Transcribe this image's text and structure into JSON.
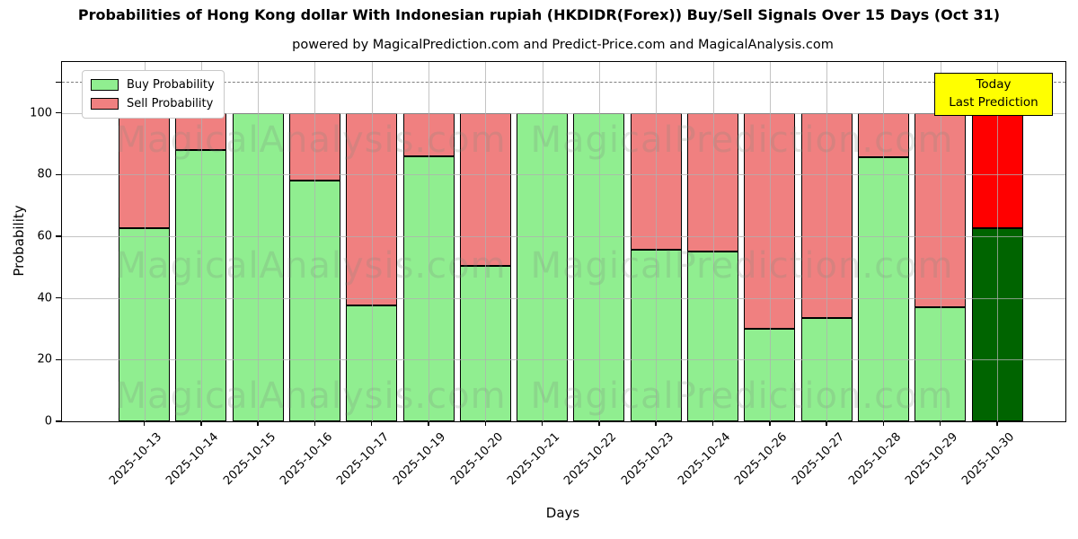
{
  "title": "Probabilities of Hong Kong dollar With Indonesian rupiah (HKDIDR(Forex)) Buy/Sell Signals Over 15 Days (Oct 31)",
  "subtitle": "powered by MagicalPrediction.com and Predict-Price.com and MagicalAnalysis.com",
  "legend": [
    {
      "label": "Buy Probability",
      "color": "#90ee90"
    },
    {
      "label": "Sell Probability",
      "color": "#f08080"
    }
  ],
  "annotation": {
    "line1": "Today",
    "line2": "Last Prediction",
    "bg_color": "#ffff00"
  },
  "watermark": {
    "left_text": "MagicalAnalysis.com",
    "right_text": "MagicalPrediction.com"
  },
  "chart_data": {
    "type": "bar",
    "stacked": true,
    "title": "Probabilities of Hong Kong dollar With Indonesian rupiah (HKDIDR(Forex)) Buy/Sell Signals Over 15 Days (Oct 31)",
    "xlabel": "Days",
    "ylabel": "Probability",
    "ylim": [
      0,
      116.5
    ],
    "yticks": [
      0,
      20,
      40,
      60,
      80,
      100
    ],
    "dashed_line_y": 110,
    "grid": true,
    "legend_position": "upper left",
    "categories": [
      "2025-10-13",
      "2025-10-14",
      "2025-10-15",
      "2025-10-16",
      "2025-10-17",
      "2025-10-19",
      "2025-10-20",
      "2025-10-21",
      "2025-10-22",
      "2025-10-23",
      "2025-10-24",
      "2025-10-26",
      "2025-10-27",
      "2025-10-28",
      "2025-10-29",
      "2025-10-30"
    ],
    "series": [
      {
        "name": "Buy Probability",
        "color": "#90ee90",
        "values": [
          62.5,
          88,
          100,
          78,
          37.5,
          86,
          50.5,
          100,
          100,
          55.5,
          55,
          30,
          33.5,
          85.5,
          37,
          62.5
        ]
      },
      {
        "name": "Sell Probability",
        "color": "#f08080",
        "values": [
          37.5,
          12,
          0,
          22,
          62.5,
          14,
          49.5,
          0,
          0,
          44.5,
          45,
          70,
          66.5,
          14.5,
          63,
          37.5
        ]
      }
    ],
    "last_bar_colors": {
      "buy": "#006400",
      "sell": "#ff0000"
    }
  }
}
